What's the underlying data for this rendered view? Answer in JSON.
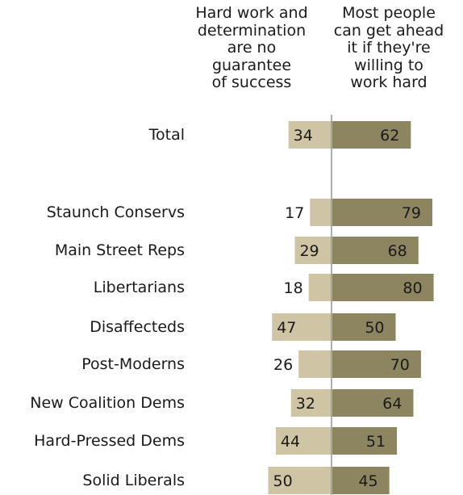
{
  "header": {
    "left": "Hard work and\ndetermination\nare no\nguarantee\nof success",
    "right": "Most people\ncan get ahead\nit if they're\nwilling to\nwork hard"
  },
  "colors": {
    "left_bar": "#cfc4a3",
    "right_bar": "#8d8560",
    "axis": "#7a7a7a",
    "text": "#1a1a1a"
  },
  "chart_data": {
    "type": "bar",
    "orientation": "horizontal-diverging",
    "categories": [
      "Total",
      "Staunch Conservs",
      "Main Street Reps",
      "Libertarians",
      "Disaffecteds",
      "Post-Moderns",
      "New Coalition Dems",
      "Hard-Pressed Dems",
      "Solid Liberals"
    ],
    "series": [
      {
        "name": "Hard work and determination are no guarantee of success",
        "values": [
          34,
          17,
          29,
          18,
          47,
          26,
          32,
          44,
          50
        ]
      },
      {
        "name": "Most people can get ahead it if they're willing to work hard",
        "values": [
          62,
          79,
          68,
          80,
          50,
          70,
          64,
          51,
          45
        ]
      }
    ],
    "xlim": [
      0,
      100
    ],
    "grid": false,
    "legend": "column headers at top"
  }
}
